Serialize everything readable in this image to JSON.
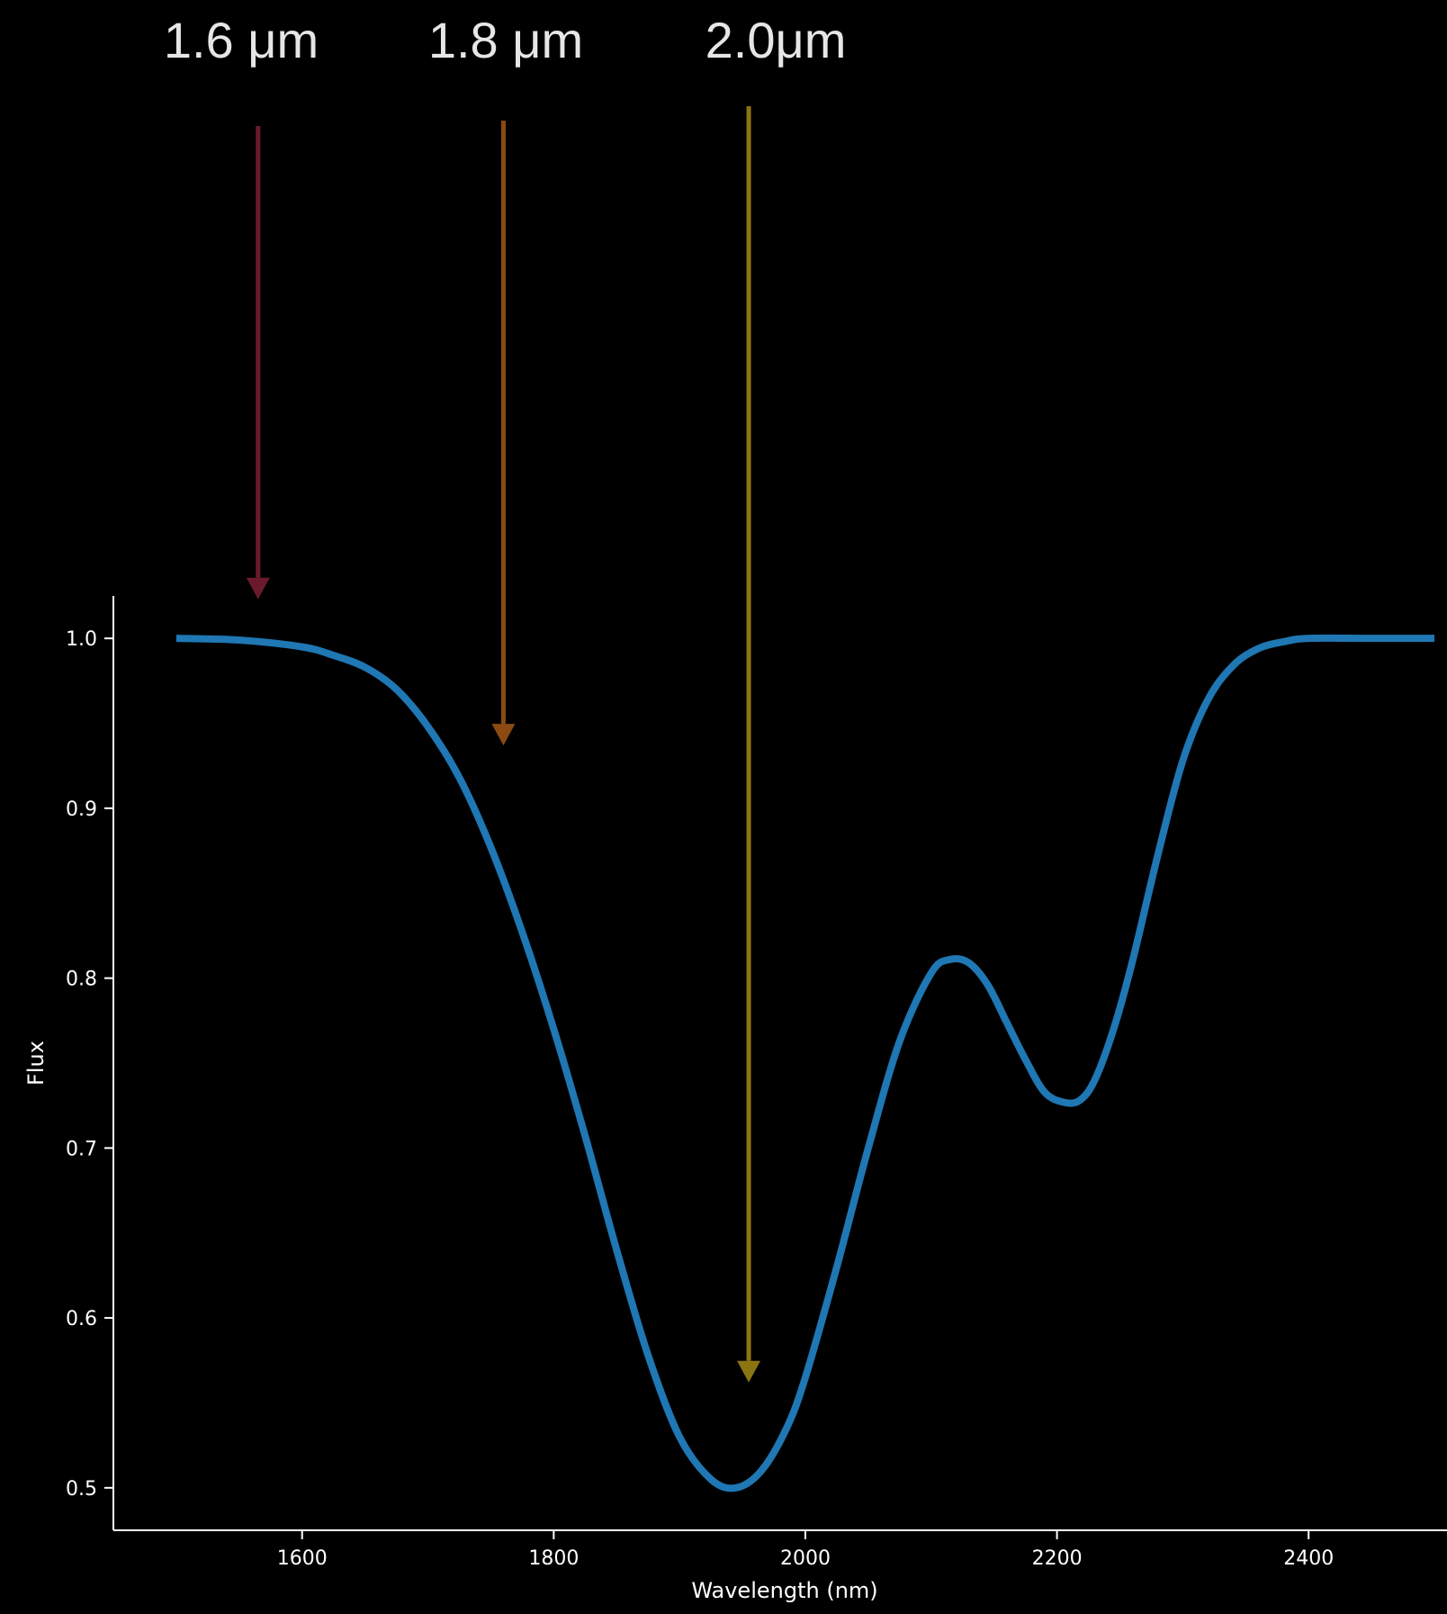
{
  "chart_data": {
    "type": "line",
    "title": "",
    "xlabel": "Wavelength (nm)",
    "ylabel": "Flux",
    "xlim": [
      1450,
      2510
    ],
    "ylim": [
      0.475,
      1.025
    ],
    "x_ticks": [
      1600,
      1800,
      2000,
      2200,
      2400
    ],
    "y_ticks": [
      0.5,
      0.6,
      0.7,
      0.8,
      0.9,
      1.0
    ],
    "x_tick_labels": [
      "1600",
      "1800",
      "2000",
      "2200",
      "2400"
    ],
    "y_tick_labels": [
      "0.5",
      "0.6",
      "0.7",
      "0.8",
      "0.9",
      "1.0"
    ],
    "grid": false,
    "line_color": "#1f77b4",
    "series": [
      {
        "x": [
          1500,
          1550,
          1600,
          1625,
          1650,
          1675,
          1700,
          1725,
          1750,
          1775,
          1800,
          1825,
          1850,
          1875,
          1900,
          1925,
          1945,
          1965,
          1985,
          2000,
          2025,
          2050,
          2075,
          2100,
          2115,
          2130,
          2145,
          2160,
          2175,
          2190,
          2205,
          2218,
          2230,
          2245,
          2260,
          2280,
          2300,
          2320,
          2340,
          2360,
          2380,
          2400,
          2450,
          2500
        ],
        "y": [
          1.0,
          0.999,
          0.995,
          0.99,
          0.983,
          0.97,
          0.948,
          0.918,
          0.877,
          0.827,
          0.77,
          0.707,
          0.64,
          0.578,
          0.53,
          0.505,
          0.5,
          0.51,
          0.535,
          0.565,
          0.63,
          0.7,
          0.763,
          0.803,
          0.811,
          0.809,
          0.796,
          0.774,
          0.752,
          0.733,
          0.727,
          0.728,
          0.74,
          0.77,
          0.81,
          0.872,
          0.928,
          0.964,
          0.984,
          0.994,
          0.998,
          1.0,
          1.0,
          1.0
        ]
      }
    ],
    "annotations": [
      {
        "text": "1.6 μm",
        "x": 1565,
        "y_tip": 1.023,
        "color": "#6b1a2c"
      },
      {
        "text": "1.8 μm",
        "x": 1760,
        "y_tip": 0.937,
        "color": "#8c4a12"
      },
      {
        "text": "2.0μm",
        "x": 1955,
        "y_tip": 0.562,
        "color": "#8a7510"
      }
    ]
  }
}
